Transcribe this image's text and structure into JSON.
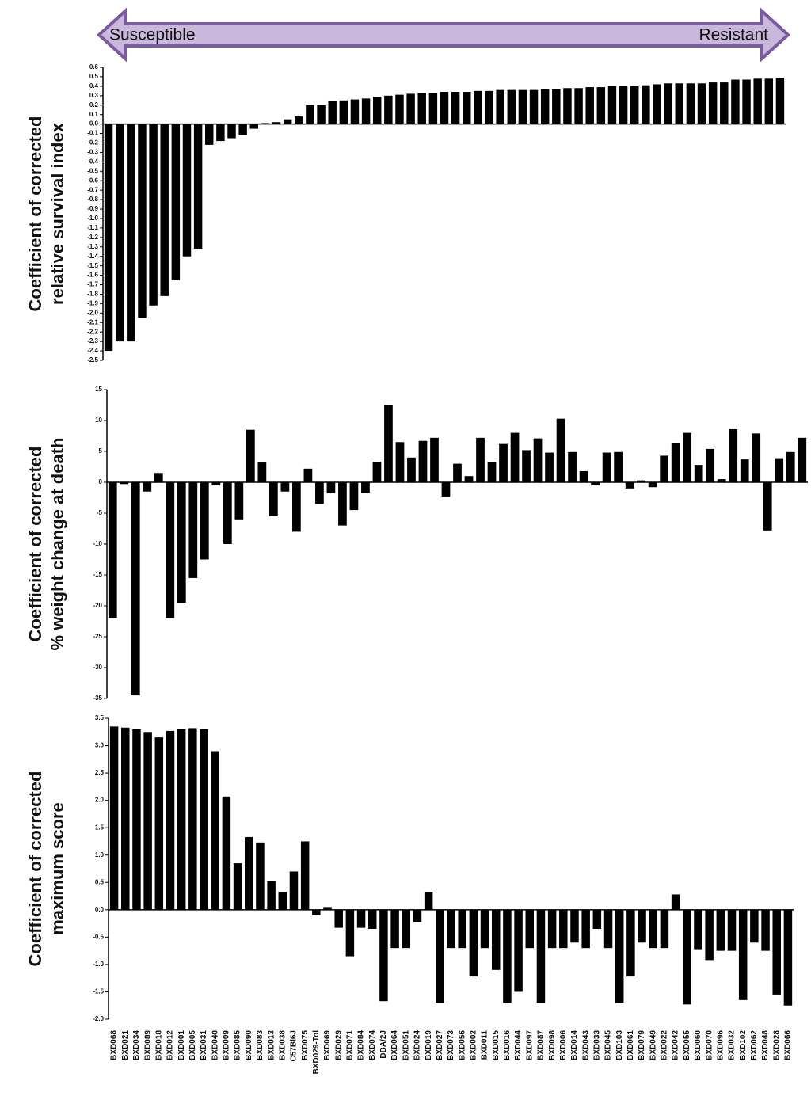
{
  "header": {
    "left": "Susceptible",
    "right": "Resistant"
  },
  "chart_data": [
    {
      "type": "bar",
      "ylabel": [
        "Coefficient of corrected",
        "relative survival index"
      ],
      "color": "#000000",
      "ylim": [
        -2.5,
        0.6
      ],
      "yticks": [
        0.6,
        0.5,
        0.4,
        0.3,
        0.2,
        0.1,
        {
          "value": 0,
          "label": "0.0"
        },
        -0.1,
        -0.2,
        -0.3,
        -0.4,
        -0.5,
        -0.6,
        -0.7,
        -0.8,
        -0.9,
        {
          "value": -1,
          "label": "-1.0"
        },
        -1.1,
        -1.2,
        -1.3,
        -1.4,
        -1.5,
        -1.6,
        -1.7,
        -1.8,
        -1.9,
        {
          "value": -2,
          "label": "-2.0"
        },
        -2.1,
        -2.2,
        -2.3,
        -2.4,
        -2.5
      ],
      "values": [
        -2.4,
        -2.3,
        -2.3,
        -2.05,
        -1.92,
        -1.82,
        -1.65,
        -1.4,
        -1.32,
        -0.22,
        -0.18,
        -0.15,
        -0.12,
        -0.05,
        0.01,
        0.02,
        0.05,
        0.08,
        0.2,
        0.2,
        0.24,
        0.25,
        0.26,
        0.27,
        0.29,
        0.3,
        0.31,
        0.32,
        0.33,
        0.33,
        0.34,
        0.34,
        0.34,
        0.35,
        0.35,
        0.36,
        0.36,
        0.36,
        0.36,
        0.37,
        0.37,
        0.38,
        0.38,
        0.39,
        0.39,
        0.4,
        0.4,
        0.4,
        0.41,
        0.42,
        0.43,
        0.43,
        0.43,
        0.43,
        0.44,
        0.44,
        0.47,
        0.47,
        0.48,
        0.48,
        0.49
      ]
    },
    {
      "type": "bar",
      "ylabel": [
        "Coefficient of corrected",
        "% weight change at death"
      ],
      "color": "#000000",
      "ylim": [
        -35,
        15
      ],
      "yticks": [
        15,
        10,
        5,
        0,
        -5,
        -10,
        -15,
        -20,
        -25,
        -30,
        -35
      ],
      "values": [
        -22,
        -0.3,
        -34.5,
        -1.5,
        1.5,
        -22,
        -19.5,
        -15.5,
        -12.5,
        -0.5,
        -10,
        -6,
        8.5,
        3.2,
        -5.5,
        -1.5,
        -8,
        2.2,
        -3.5,
        -1.8,
        -7,
        -4.5,
        -1.7,
        3.3,
        12.5,
        6.5,
        4,
        6.7,
        7.2,
        -2.3,
        3,
        1,
        7.2,
        3.3,
        6.2,
        8,
        5.2,
        7.1,
        4.8,
        10.3,
        4.9,
        1.8,
        -0.5,
        4.8,
        4.9,
        -1,
        0.3,
        -0.8,
        4.3,
        6.3,
        8,
        2.8,
        5.4,
        0.5,
        8.6,
        3.7,
        7.9,
        -7.8,
        3.9,
        4.9,
        7.2
      ]
    },
    {
      "type": "bar",
      "ylabel": [
        "Coefficient of corrected",
        "maximum score"
      ],
      "color": "#000000",
      "ylim": [
        -2,
        3.5
      ],
      "yticks": [
        3.5,
        {
          "value": 3,
          "label": "3.0"
        },
        2.5,
        {
          "value": 2,
          "label": "2.0"
        },
        1.5,
        {
          "value": 1,
          "label": "1.0"
        },
        0.5,
        {
          "value": 0,
          "label": "0.0"
        },
        -0.5,
        {
          "value": -1,
          "label": "-1.0"
        },
        -1.5,
        {
          "value": -2,
          "label": "-2.0"
        }
      ],
      "categories": [
        "BXD068",
        "BXD021",
        "BXD034",
        "BXD089",
        "BXD018",
        "BXD012",
        "BXD001",
        "BXD005",
        "BXD031",
        "BXD040",
        "BXD009",
        "BXD085",
        "BXD090",
        "BXD083",
        "BXD013",
        "BXD038",
        "C57Bl6J",
        "BXD075",
        "BXD029-Tol",
        "BXD069",
        "BXD029",
        "BXD071",
        "BXD084",
        "BXD074",
        "DBA/2J",
        "BXD064",
        "BXD051",
        "BXD024",
        "BXD019",
        "BXD027",
        "BXD073",
        "BXD056",
        "BXD002",
        "BXD011",
        "BXD015",
        "BXD016",
        "BXD044",
        "BXD097",
        "BXD087",
        "BXD098",
        "BXD006",
        "BXD014",
        "BXD043",
        "BXD033",
        "BXD045",
        "BXD103",
        "BXD061",
        "BXD079",
        "BXD049",
        "BXD022",
        "BXD042",
        "BXD055",
        "BXD060",
        "BXD070",
        "BXD096",
        "BXD032",
        "BXD102",
        "BXD062",
        "BXD048",
        "BXD028",
        "BXD066"
      ],
      "values": [
        3.35,
        3.33,
        3.3,
        3.25,
        3.15,
        3.27,
        3.3,
        3.32,
        3.3,
        2.9,
        2.07,
        0.85,
        1.33,
        1.23,
        0.53,
        0.33,
        0.7,
        1.25,
        -0.1,
        0.05,
        -0.33,
        -0.85,
        -0.33,
        -0.35,
        -1.67,
        -0.7,
        -0.7,
        -0.22,
        0.33,
        -1.7,
        -0.7,
        -0.7,
        -1.22,
        -0.7,
        -1.1,
        -1.7,
        -1.5,
        -0.7,
        -1.7,
        -0.7,
        -0.7,
        -0.6,
        -0.7,
        -0.35,
        -0.7,
        -1.7,
        -1.22,
        -0.6,
        -0.7,
        -0.7,
        0.28,
        -1.73,
        -0.72,
        -0.92,
        -0.75,
        -0.75,
        -1.65,
        -0.6,
        -0.75,
        -1.55,
        -1.75
      ]
    }
  ]
}
